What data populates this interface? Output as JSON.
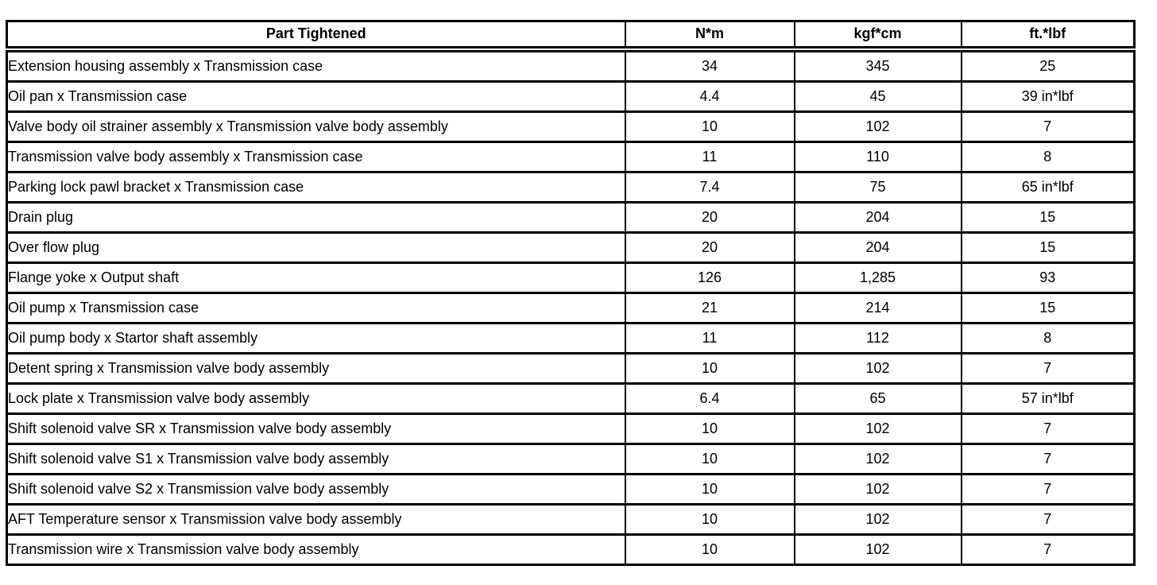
{
  "colors": {
    "border": "#000000",
    "text": "#000000",
    "background": "#ffffff"
  },
  "table": {
    "columns": [
      "Part Tightened",
      "N*m",
      "kgf*cm",
      "ft.*lbf"
    ],
    "rows": [
      {
        "part": "Extension housing assembly x Transmission case",
        "nm": "34",
        "kgfcm": "345",
        "ftlbf": "25"
      },
      {
        "part": "Oil pan x Transmission case",
        "nm": "4.4",
        "kgfcm": "45",
        "ftlbf": "39 in*lbf"
      },
      {
        "part": "Valve body oil strainer assembly x Transmission valve body assembly",
        "nm": "10",
        "kgfcm": "102",
        "ftlbf": "7"
      },
      {
        "part": "Transmission valve body assembly x Transmission case",
        "nm": "11",
        "kgfcm": "110",
        "ftlbf": "8"
      },
      {
        "part": "Parking lock pawl bracket x Transmission case",
        "nm": "7.4",
        "kgfcm": "75",
        "ftlbf": "65 in*lbf"
      },
      {
        "part": "Drain plug",
        "nm": "20",
        "kgfcm": "204",
        "ftlbf": "15"
      },
      {
        "part": "Over flow plug",
        "nm": "20",
        "kgfcm": "204",
        "ftlbf": "15"
      },
      {
        "part": "Flange yoke x Output shaft",
        "nm": "126",
        "kgfcm": "1,285",
        "ftlbf": "93"
      },
      {
        "part": "Oil pump x Transmission case",
        "nm": "21",
        "kgfcm": "214",
        "ftlbf": "15"
      },
      {
        "part": "Oil pump body x Startor shaft assembly",
        "nm": "11",
        "kgfcm": "112",
        "ftlbf": "8"
      },
      {
        "part": "Detent spring x Transmission valve body assembly",
        "nm": "10",
        "kgfcm": "102",
        "ftlbf": "7"
      },
      {
        "part": "Lock plate x Transmission valve body assembly",
        "nm": "6.4",
        "kgfcm": "65",
        "ftlbf": "57 in*lbf"
      },
      {
        "part": "Shift solenoid valve SR x Transmission valve body assembly",
        "nm": "10",
        "kgfcm": "102",
        "ftlbf": "7"
      },
      {
        "part": "Shift solenoid valve S1 x Transmission valve body assembly",
        "nm": "10",
        "kgfcm": "102",
        "ftlbf": "7"
      },
      {
        "part": "Shift solenoid valve S2 x Transmission valve body assembly",
        "nm": "10",
        "kgfcm": "102",
        "ftlbf": "7"
      },
      {
        "part": "AFT Temperature sensor x Transmission valve body assembly",
        "nm": "10",
        "kgfcm": "102",
        "ftlbf": "7"
      },
      {
        "part": "Transmission wire x Transmission valve body assembly",
        "nm": "10",
        "kgfcm": "102",
        "ftlbf": "7"
      }
    ]
  }
}
